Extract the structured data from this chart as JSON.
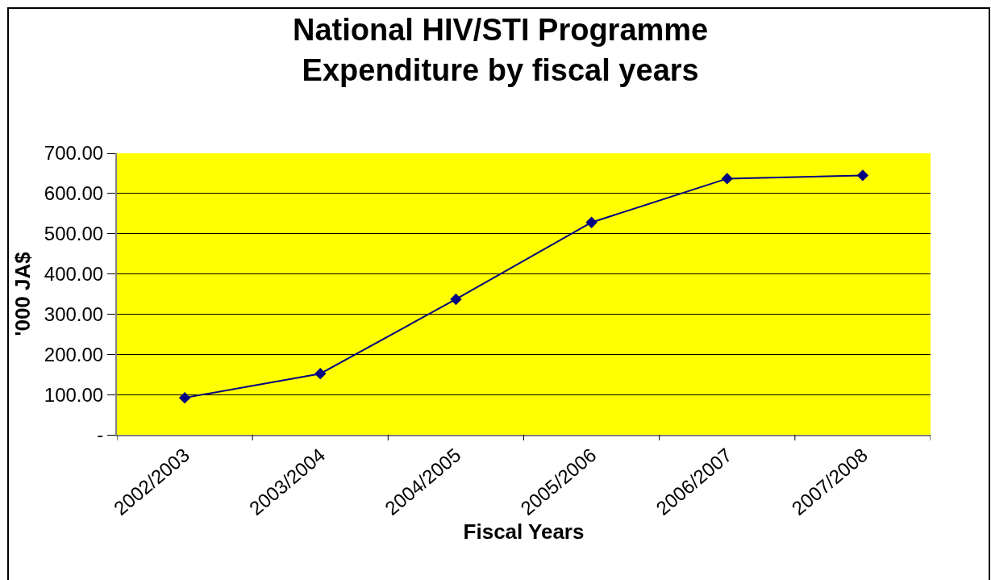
{
  "chart_data": {
    "type": "line",
    "title": "National HIV/STI Programme\nExpenditure by fiscal years",
    "xlabel": "Fiscal Years",
    "ylabel": "'000 JA$",
    "categories": [
      "2002/2003",
      "2003/2004",
      "2004/2005",
      "2005/2006",
      "2006/2007",
      "2007/2008"
    ],
    "series": [
      {
        "color": "#000080",
        "values": [
          92,
          152,
          337,
          528,
          637,
          645
        ]
      }
    ],
    "ylim": [
      0,
      700
    ],
    "yticks": [
      {
        "value": 0,
        "label": "-"
      },
      {
        "value": 100,
        "label": "100.00"
      },
      {
        "value": 200,
        "label": "200.00"
      },
      {
        "value": 300,
        "label": "300.00"
      },
      {
        "value": 400,
        "label": "400.00"
      },
      {
        "value": 500,
        "label": "500.00"
      },
      {
        "value": 600,
        "label": "600.00"
      },
      {
        "value": 700,
        "label": "700.00"
      }
    ],
    "grid": "y",
    "marker": "diamond",
    "line_style": "solid"
  }
}
